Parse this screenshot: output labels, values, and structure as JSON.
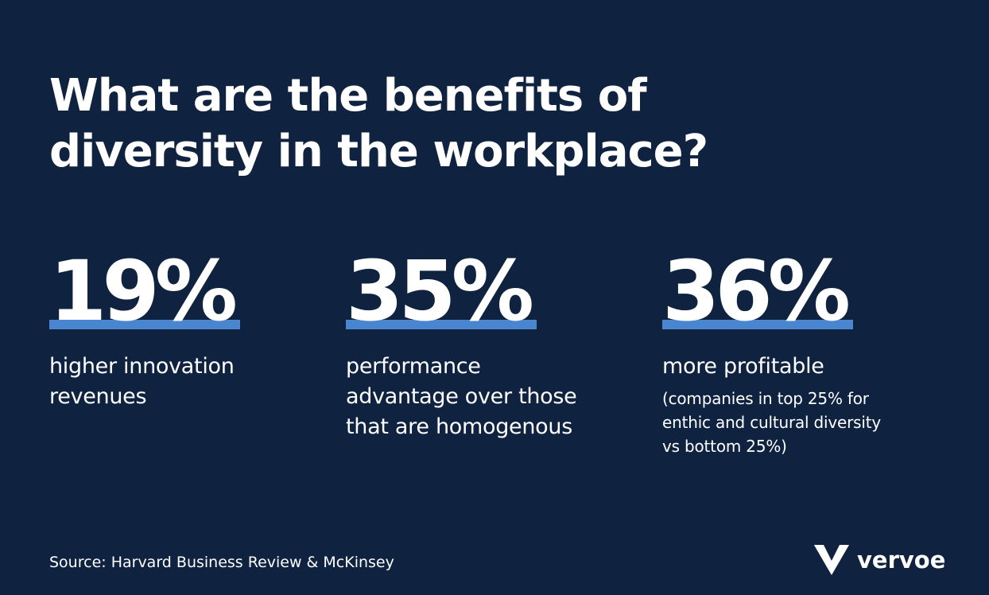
{
  "slide": {
    "title_line1": "What are the benefits of",
    "title_line2": "diversity in the workplace?"
  },
  "stats": [
    {
      "value": "19%",
      "description_lines": [
        "higher innovation",
        "revenues"
      ],
      "note_lines": []
    },
    {
      "value": "35%",
      "description_lines": [
        "performance",
        "advantage over those",
        "that are homogenous"
      ],
      "note_lines": []
    },
    {
      "value": "36%",
      "description_lines": [
        "more profitable"
      ],
      "note_lines": [
        "(companies in top 25% for",
        "enthic and cultural diversity",
        "vs bottom 25%)"
      ]
    }
  ],
  "footer": {
    "source": "Source: Harvard Business Review & McKinsey"
  },
  "brand": {
    "name": "vervoe",
    "icon": "vervoe-v-logo-icon"
  },
  "colors": {
    "background": "#0f2340",
    "accent": "#4a86d0",
    "text": "#ffffff"
  }
}
